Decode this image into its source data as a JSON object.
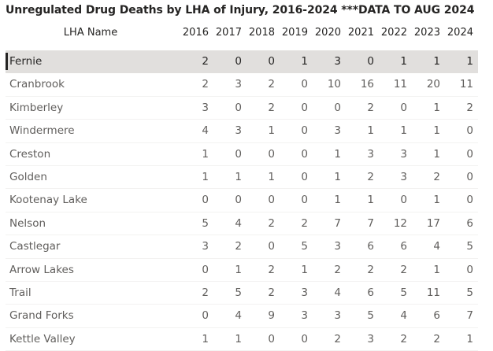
{
  "title": "Unregulated Drug Deaths by LHA of Injury, 2016-2024 ***DATA TO AUG 2024",
  "table": {
    "name_header": "LHA Name",
    "columns": [
      "2016",
      "2017",
      "2018",
      "2019",
      "2020",
      "2021",
      "2022",
      "2023",
      "2024"
    ],
    "rows": [
      {
        "name": "Fernie",
        "values": [
          "2",
          "0",
          "0",
          "1",
          "3",
          "0",
          "1",
          "1",
          "1"
        ]
      },
      {
        "name": "Cranbrook",
        "values": [
          "2",
          "3",
          "2",
          "0",
          "10",
          "16",
          "11",
          "20",
          "11"
        ]
      },
      {
        "name": "Kimberley",
        "values": [
          "3",
          "0",
          "2",
          "0",
          "0",
          "2",
          "0",
          "1",
          "2"
        ]
      },
      {
        "name": "Windermere",
        "values": [
          "4",
          "3",
          "1",
          "0",
          "3",
          "1",
          "1",
          "1",
          "0"
        ]
      },
      {
        "name": "Creston",
        "values": [
          "1",
          "0",
          "0",
          "0",
          "1",
          "3",
          "3",
          "1",
          "0"
        ]
      },
      {
        "name": "Golden",
        "values": [
          "1",
          "1",
          "1",
          "0",
          "1",
          "2",
          "3",
          "2",
          "0"
        ]
      },
      {
        "name": "Kootenay Lake",
        "values": [
          "0",
          "0",
          "0",
          "0",
          "1",
          "1",
          "0",
          "1",
          "0"
        ]
      },
      {
        "name": "Nelson",
        "values": [
          "5",
          "4",
          "2",
          "2",
          "7",
          "7",
          "12",
          "17",
          "6"
        ]
      },
      {
        "name": "Castlegar",
        "values": [
          "3",
          "2",
          "0",
          "5",
          "3",
          "6",
          "6",
          "4",
          "5"
        ]
      },
      {
        "name": "Arrow Lakes",
        "values": [
          "0",
          "1",
          "2",
          "1",
          "2",
          "2",
          "2",
          "1",
          "0"
        ]
      },
      {
        "name": "Trail",
        "values": [
          "2",
          "5",
          "2",
          "3",
          "4",
          "6",
          "5",
          "11",
          "5"
        ]
      },
      {
        "name": "Grand Forks",
        "values": [
          "0",
          "4",
          "9",
          "3",
          "3",
          "5",
          "4",
          "6",
          "7"
        ]
      },
      {
        "name": "Kettle Valley",
        "values": [
          "1",
          "1",
          "0",
          "0",
          "2",
          "3",
          "2",
          "2",
          "1"
        ]
      }
    ]
  }
}
